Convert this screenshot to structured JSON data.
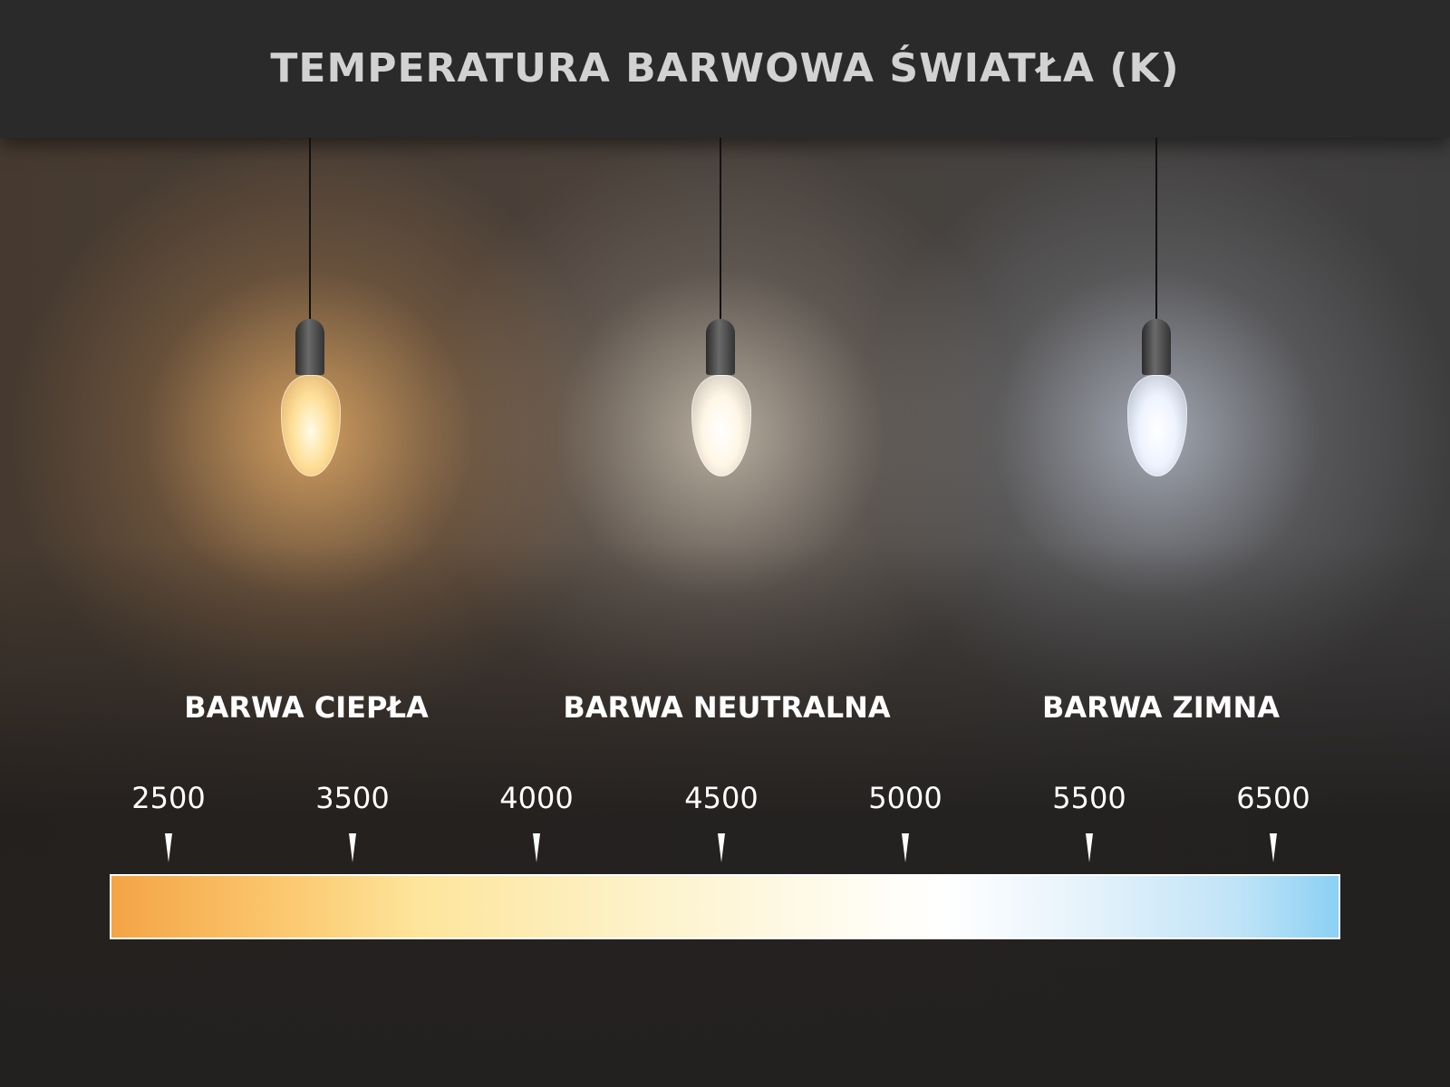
{
  "title": "TEMPERATURA BARWOWA ŚWIATŁA (K)",
  "categories": [
    {
      "label": "BARWA CIEPŁA",
      "glow_color": "#ffbe6e"
    },
    {
      "label": "BARWA NEUTRALNA",
      "glow_color": "#fff5e1"
    },
    {
      "label": "BARWA ZIMNA",
      "glow_color": "#e1ebff"
    }
  ],
  "scale": {
    "ticks": [
      "2500",
      "3500",
      "4000",
      "4500",
      "5000",
      "5500",
      "6500"
    ],
    "gradient_start": "#f4a445",
    "gradient_mid": "#ffffff",
    "gradient_end": "#8bd0f3"
  }
}
